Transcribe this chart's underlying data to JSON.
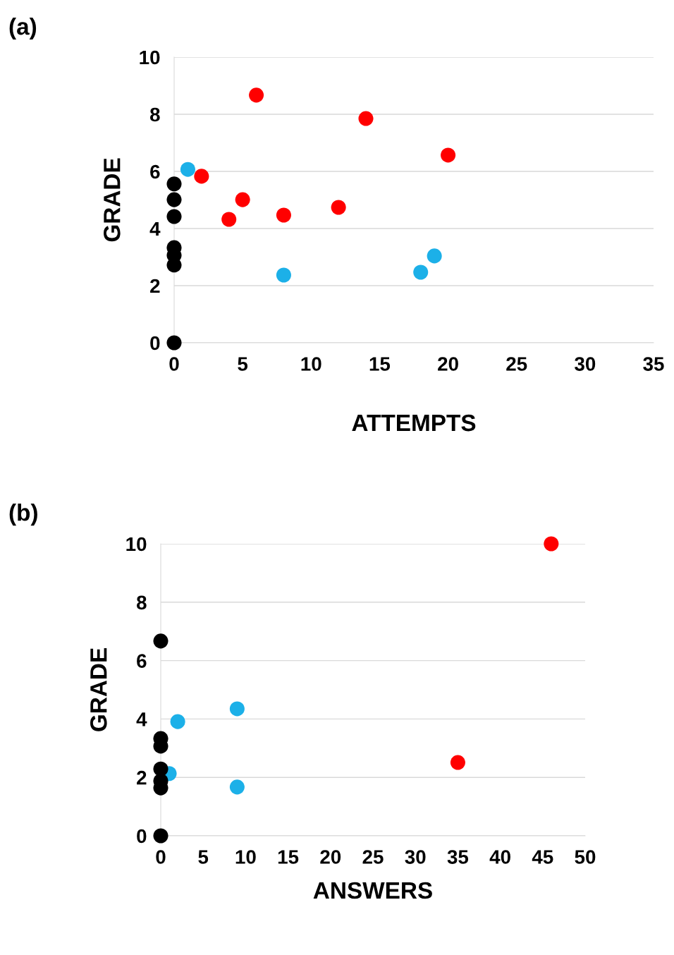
{
  "chart_data": [
    {
      "type": "scatter",
      "title": "(a)",
      "xlabel": "ATTEMPTS",
      "ylabel": "GRADE",
      "xlim": [
        0,
        35
      ],
      "xticks": [
        0,
        5,
        10,
        15,
        20,
        25,
        30,
        35
      ],
      "ylim": [
        0,
        10
      ],
      "yticks": [
        0,
        2,
        4,
        6,
        8,
        10
      ],
      "grid": "y",
      "marker": "circle",
      "series": [
        {
          "color": "#ff0000",
          "x": [
            2,
            4,
            5,
            6,
            8,
            12,
            14,
            20
          ],
          "values": [
            5.83,
            4.32,
            5.01,
            8.67,
            4.47,
            4.74,
            7.85,
            6.57
          ]
        },
        {
          "color": "#1cb0e8",
          "x": [
            1,
            8,
            18,
            19
          ],
          "values": [
            6.07,
            2.37,
            2.47,
            3.04
          ]
        },
        {
          "color": "#000000",
          "x": [
            0,
            0,
            0,
            0,
            0,
            0,
            0
          ],
          "values": [
            5.56,
            5.01,
            4.42,
            3.33,
            3.06,
            2.72,
            0
          ]
        }
      ]
    },
    {
      "type": "scatter",
      "title": "(b)",
      "xlabel": "ANSWERS",
      "ylabel": "GRADE",
      "xlim": [
        0,
        50
      ],
      "xticks": [
        0,
        5,
        10,
        15,
        20,
        25,
        30,
        35,
        40,
        45,
        50
      ],
      "ylim": [
        0,
        10
      ],
      "yticks": [
        0,
        2,
        4,
        6,
        8,
        10
      ],
      "grid": "y",
      "marker": "circle",
      "series": [
        {
          "color": "#ff0000",
          "x": [
            46,
            35
          ],
          "values": [
            10,
            2.51
          ]
        },
        {
          "color": "#1cb0e8",
          "x": [
            2,
            9,
            9,
            1
          ],
          "values": [
            3.91,
            4.35,
            1.67,
            2.13
          ]
        },
        {
          "color": "#000000",
          "x": [
            0,
            0,
            0,
            0,
            0,
            0,
            0
          ],
          "values": [
            6.67,
            3.33,
            3.07,
            2.29,
            1.88,
            1.64,
            0
          ]
        }
      ]
    }
  ]
}
